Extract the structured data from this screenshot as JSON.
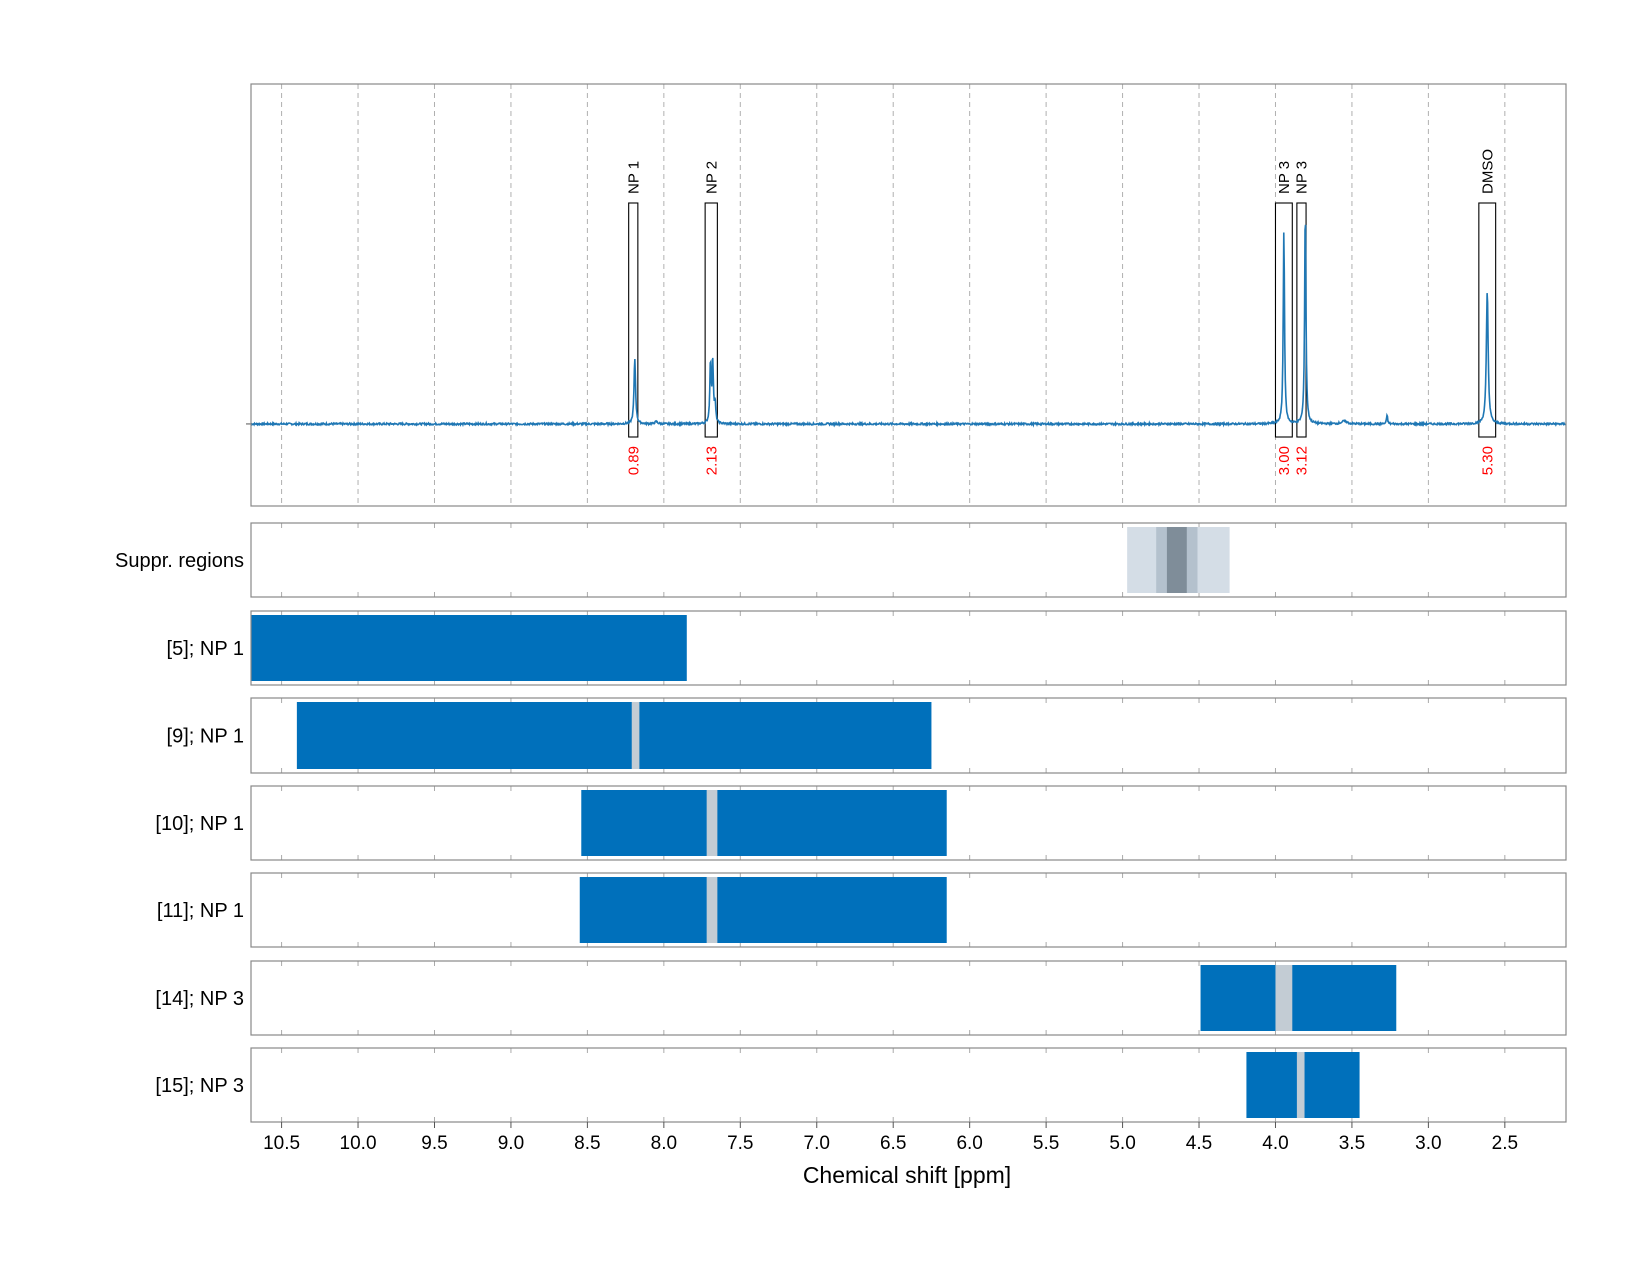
{
  "chart_data": {
    "type": "line",
    "xlabel": "Chemical shift [ppm]",
    "x_axis_reversed": true,
    "xlim": [
      10.7,
      2.1
    ],
    "x_ticks": [
      10.5,
      10.0,
      9.5,
      9.0,
      8.5,
      8.0,
      7.5,
      7.0,
      6.5,
      6.0,
      5.5,
      5.0,
      4.5,
      4.0,
      3.5,
      3.0,
      2.5
    ],
    "x_tick_labels": [
      "10.5",
      "10.0",
      "9.5",
      "9.0",
      "8.5",
      "8.0",
      "7.5",
      "7.0",
      "6.5",
      "6.0",
      "5.5",
      "5.0",
      "4.5",
      "4.0",
      "3.5",
      "3.0",
      "2.5"
    ],
    "grid": "vertical dashed",
    "spectrum": {
      "color": "#1f77b4",
      "baseline": 0,
      "ylim": [
        -0.35,
        1.45
      ],
      "peaks": [
        {
          "ppm": 8.19,
          "height": 0.28,
          "width": 0.006
        },
        {
          "ppm": 8.05,
          "height": 0.01,
          "width": 0.01
        },
        {
          "ppm": 7.695,
          "height": 0.26,
          "width": 0.005
        },
        {
          "ppm": 7.68,
          "height": 0.25,
          "width": 0.005
        },
        {
          "ppm": 7.665,
          "height": 0.08,
          "width": 0.005
        },
        {
          "ppm": 3.945,
          "height": 0.83,
          "width": 0.005
        },
        {
          "ppm": 3.805,
          "height": 0.93,
          "width": 0.005
        },
        {
          "ppm": 3.55,
          "height": 0.012,
          "width": 0.02
        },
        {
          "ppm": 3.27,
          "height": 0.04,
          "width": 0.004
        },
        {
          "ppm": 2.615,
          "height": 0.57,
          "width": 0.007
        }
      ],
      "annotations": [
        {
          "label": "NP 1",
          "x0": 8.23,
          "x1": 8.17,
          "integral": "0.89"
        },
        {
          "label": "NP 2",
          "x0": 7.73,
          "x1": 7.65,
          "integral": "2.13"
        },
        {
          "label": "NP 3",
          "x0": 4.0,
          "x1": 3.89,
          "integral": "3.00"
        },
        {
          "label": "NP 3",
          "x0": 3.86,
          "x1": 3.8,
          "integral": "3.12"
        },
        {
          "label": "DMSO",
          "x0": 2.67,
          "x1": 2.56,
          "integral": "5.30"
        }
      ]
    },
    "suppressed_regions": {
      "label": "Suppr. regions",
      "bands": [
        {
          "x0": 4.97,
          "x1": 4.3,
          "color": "#d4dde6"
        },
        {
          "x0": 4.78,
          "x1": 4.51,
          "color": "#b4c1cd"
        },
        {
          "x0": 4.71,
          "x1": 4.58,
          "color": "#7f8d99"
        }
      ]
    },
    "rows": [
      {
        "label": "[5]; NP 1",
        "x0": 10.7,
        "x1": 7.85,
        "gap": null
      },
      {
        "label": "[9]; NP 1",
        "x0": 10.4,
        "x1": 6.25,
        "gap": [
          8.21,
          8.16
        ]
      },
      {
        "label": "[10]; NP 1",
        "x0": 8.54,
        "x1": 6.15,
        "gap": [
          7.72,
          7.65
        ]
      },
      {
        "label": "[11]; NP 1",
        "x0": 8.55,
        "x1": 6.15,
        "gap": [
          7.72,
          7.65
        ]
      },
      {
        "label": "[14]; NP 3",
        "x0": 4.49,
        "x1": 3.21,
        "gap": [
          4.0,
          3.89
        ]
      },
      {
        "label": "[15]; NP 3",
        "x0": 4.19,
        "x1": 3.45,
        "gap": [
          3.86,
          3.81
        ]
      }
    ],
    "colors": {
      "bar": "#0070bb",
      "gap": "#c3ccd4",
      "integral": "#ff0000",
      "frame": "#888888",
      "grid": "#b0b0b0"
    }
  }
}
